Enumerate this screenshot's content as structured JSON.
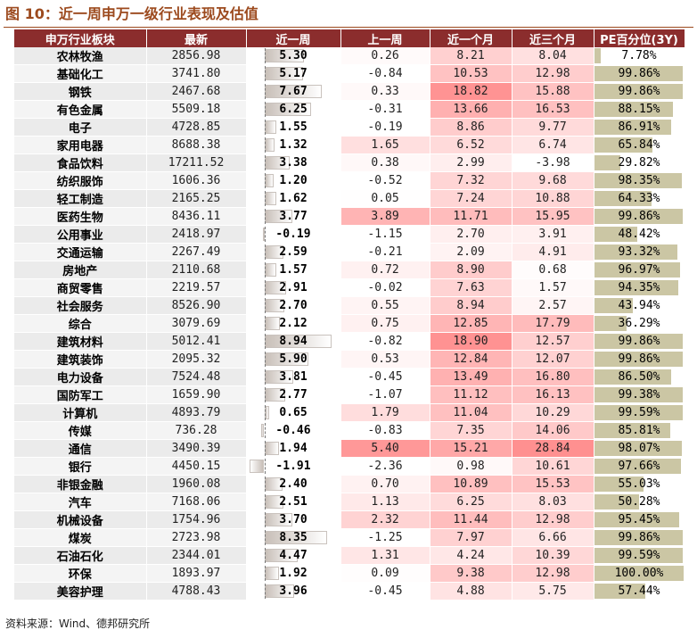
{
  "title": "图 10：近一周申万一级行业表现及估值",
  "source": "资料来源：Wind、德邦研究所",
  "colors": {
    "header_bg": "#8b2d2d",
    "title": "#9c4a1e",
    "heat_hot": "#f2a1a1",
    "pe_bar": "#cbc6a4",
    "week_bar": "#c8bfb8"
  },
  "chart_data": {
    "type": "table",
    "title": "近一周申万一级行业表现及估值",
    "columns": [
      "申万行业板块",
      "最新",
      "近一周",
      "上一周",
      "近一个月",
      "近三个月",
      "PE百分位(3Y)"
    ],
    "rows": [
      {
        "name": "农林牧渔",
        "latest": "2856.98",
        "week": "5.30",
        "prev_week": "0.26",
        "month": "8.21",
        "three_month": "8.04",
        "pe": "7.78%",
        "pe_value": 7.78
      },
      {
        "name": "基础化工",
        "latest": "3741.80",
        "week": "5.17",
        "prev_week": "-0.84",
        "month": "10.53",
        "three_month": "12.98",
        "pe": "99.86%",
        "pe_value": 99.86
      },
      {
        "name": "钢铁",
        "latest": "2467.68",
        "week": "7.67",
        "prev_week": "0.33",
        "month": "18.82",
        "three_month": "15.88",
        "pe": "99.86%",
        "pe_value": 99.86
      },
      {
        "name": "有色金属",
        "latest": "5509.18",
        "week": "6.25",
        "prev_week": "-0.31",
        "month": "13.66",
        "three_month": "16.53",
        "pe": "88.15%",
        "pe_value": 88.15
      },
      {
        "name": "电子",
        "latest": "4728.85",
        "week": "1.55",
        "prev_week": "-0.19",
        "month": "8.86",
        "three_month": "9.77",
        "pe": "86.91%",
        "pe_value": 86.91
      },
      {
        "name": "家用电器",
        "latest": "8688.38",
        "week": "1.32",
        "prev_week": "1.65",
        "month": "6.52",
        "three_month": "6.74",
        "pe": "65.84%",
        "pe_value": 65.84
      },
      {
        "name": "食品饮料",
        "latest": "17211.52",
        "week": "3.38",
        "prev_week": "0.38",
        "month": "2.99",
        "three_month": "-3.98",
        "pe": "29.82%",
        "pe_value": 29.82
      },
      {
        "name": "纺织服饰",
        "latest": "1606.36",
        "week": "1.20",
        "prev_week": "-0.52",
        "month": "7.32",
        "three_month": "9.68",
        "pe": "98.35%",
        "pe_value": 98.35
      },
      {
        "name": "轻工制造",
        "latest": "2165.25",
        "week": "1.62",
        "prev_week": "0.05",
        "month": "7.24",
        "three_month": "10.88",
        "pe": "64.33%",
        "pe_value": 64.33
      },
      {
        "name": "医药生物",
        "latest": "8436.11",
        "week": "3.77",
        "prev_week": "3.89",
        "month": "11.71",
        "three_month": "15.95",
        "pe": "99.86%",
        "pe_value": 99.86
      },
      {
        "name": "公用事业",
        "latest": "2418.97",
        "week": "-0.19",
        "prev_week": "-1.15",
        "month": "2.70",
        "three_month": "3.91",
        "pe": "48.42%",
        "pe_value": 48.42
      },
      {
        "name": "交通运输",
        "latest": "2267.49",
        "week": "2.59",
        "prev_week": "-0.21",
        "month": "2.09",
        "three_month": "4.91",
        "pe": "93.32%",
        "pe_value": 93.32
      },
      {
        "name": "房地产",
        "latest": "2110.68",
        "week": "1.57",
        "prev_week": "0.72",
        "month": "8.90",
        "three_month": "0.68",
        "pe": "96.97%",
        "pe_value": 96.97
      },
      {
        "name": "商贸零售",
        "latest": "2219.57",
        "week": "2.91",
        "prev_week": "-0.02",
        "month": "7.63",
        "three_month": "1.57",
        "pe": "94.35%",
        "pe_value": 94.35
      },
      {
        "name": "社会服务",
        "latest": "8526.90",
        "week": "2.70",
        "prev_week": "0.55",
        "month": "8.94",
        "three_month": "2.57",
        "pe": "43.94%",
        "pe_value": 43.94
      },
      {
        "name": "综合",
        "latest": "3079.69",
        "week": "2.12",
        "prev_week": "0.75",
        "month": "12.85",
        "three_month": "17.79",
        "pe": "36.29%",
        "pe_value": 36.29
      },
      {
        "name": "建筑材料",
        "latest": "5012.41",
        "week": "8.94",
        "prev_week": "-0.82",
        "month": "18.90",
        "three_month": "12.57",
        "pe": "99.86%",
        "pe_value": 99.86
      },
      {
        "name": "建筑装饰",
        "latest": "2095.32",
        "week": "5.90",
        "prev_week": "0.53",
        "month": "12.84",
        "three_month": "12.07",
        "pe": "99.86%",
        "pe_value": 99.86
      },
      {
        "name": "电力设备",
        "latest": "7524.48",
        "week": "3.81",
        "prev_week": "-0.45",
        "month": "13.49",
        "three_month": "16.80",
        "pe": "86.50%",
        "pe_value": 86.5
      },
      {
        "name": "国防军工",
        "latest": "1659.90",
        "week": "2.77",
        "prev_week": "-1.07",
        "month": "11.12",
        "three_month": "16.13",
        "pe": "99.38%",
        "pe_value": 99.38
      },
      {
        "name": "计算机",
        "latest": "4893.79",
        "week": "0.65",
        "prev_week": "1.79",
        "month": "11.04",
        "three_month": "10.29",
        "pe": "99.59%",
        "pe_value": 99.59
      },
      {
        "name": "传媒",
        "latest": "736.28",
        "week": "-0.46",
        "prev_week": "-0.83",
        "month": "7.35",
        "three_month": "14.06",
        "pe": "85.81%",
        "pe_value": 85.81
      },
      {
        "name": "通信",
        "latest": "3490.39",
        "week": "1.94",
        "prev_week": "5.40",
        "month": "15.21",
        "three_month": "28.84",
        "pe": "98.07%",
        "pe_value": 98.07
      },
      {
        "name": "银行",
        "latest": "4450.15",
        "week": "-1.91",
        "prev_week": "-2.36",
        "month": "0.98",
        "three_month": "10.61",
        "pe": "97.66%",
        "pe_value": 97.66
      },
      {
        "name": "非银金融",
        "latest": "1960.08",
        "week": "2.40",
        "prev_week": "0.70",
        "month": "10.89",
        "three_month": "15.53",
        "pe": "55.03%",
        "pe_value": 55.03
      },
      {
        "name": "汽车",
        "latest": "7168.06",
        "week": "2.51",
        "prev_week": "1.13",
        "month": "6.25",
        "three_month": "8.03",
        "pe": "50.28%",
        "pe_value": 50.28
      },
      {
        "name": "机械设备",
        "latest": "1754.96",
        "week": "3.70",
        "prev_week": "2.32",
        "month": "11.44",
        "three_month": "12.98",
        "pe": "95.45%",
        "pe_value": 95.45
      },
      {
        "name": "煤炭",
        "latest": "2723.98",
        "week": "8.35",
        "prev_week": "-1.25",
        "month": "7.97",
        "three_month": "6.66",
        "pe": "99.86%",
        "pe_value": 99.86
      },
      {
        "name": "石油石化",
        "latest": "2344.01",
        "week": "4.47",
        "prev_week": "1.31",
        "month": "4.24",
        "three_month": "10.39",
        "pe": "99.59%",
        "pe_value": 99.59
      },
      {
        "name": "环保",
        "latest": "1893.97",
        "week": "1.92",
        "prev_week": "0.09",
        "month": "9.38",
        "three_month": "12.98",
        "pe": "100.00%",
        "pe_value": 100.0
      },
      {
        "name": "美容护理",
        "latest": "4788.43",
        "week": "3.96",
        "prev_week": "-0.45",
        "month": "4.88",
        "three_month": "5.75",
        "pe": "57.44%",
        "pe_value": 57.44
      }
    ]
  }
}
